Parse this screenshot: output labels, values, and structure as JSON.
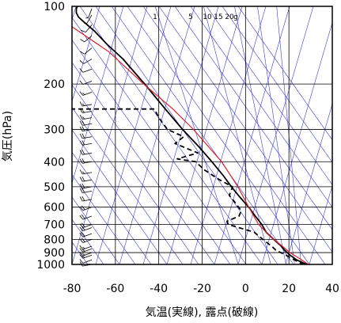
{
  "chart_data": {
    "type": "line",
    "title": "",
    "xlabel": "気温(実線), 露点(破線)",
    "ylabel": "気圧(hPa)",
    "xlim": [
      -80,
      40
    ],
    "ylim": [
      1000,
      100
    ],
    "y_scale": "log",
    "x_ticks": [
      "-80",
      "-60",
      "-40",
      "-20",
      "0",
      "20",
      "40"
    ],
    "y_ticks": [
      "100",
      "200",
      "300",
      "400",
      "500",
      "600",
      "700",
      "800",
      "900",
      "1000"
    ],
    "mixing_ratio_labels": [
      "1",
      "5",
      "10",
      "15",
      "20",
      "g"
    ],
    "colors": {
      "temperature": "#000000",
      "dewpoint": "#000000",
      "parcel": "#e0202a",
      "guides": "#3b3bd6",
      "grid": "#000000"
    },
    "series": [
      {
        "name": "気温",
        "style": "solid",
        "points": [
          [
            29.0,
            1000
          ],
          [
            27.0,
            990
          ],
          [
            23.5,
            960
          ],
          [
            20.5,
            920
          ],
          [
            18.0,
            880
          ],
          [
            16.5,
            850
          ],
          [
            13.0,
            800
          ],
          [
            9.5,
            750
          ],
          [
            7.5,
            700
          ],
          [
            4.5,
            650
          ],
          [
            1.5,
            600
          ],
          [
            -2.5,
            550
          ],
          [
            -6.5,
            500
          ],
          [
            -10.5,
            450
          ],
          [
            -15.5,
            400
          ],
          [
            -21.5,
            350
          ],
          [
            -29.0,
            300
          ],
          [
            -37.0,
            250
          ],
          [
            -46.5,
            200
          ],
          [
            -56.5,
            160
          ],
          [
            -64.0,
            140
          ],
          [
            -69.5,
            125
          ],
          [
            -74.5,
            115
          ],
          [
            -77.0,
            110
          ],
          [
            -78.0,
            106
          ],
          [
            -78.0,
            102
          ],
          [
            -77.5,
            100
          ]
        ]
      },
      {
        "name": "露点",
        "style": "dashed",
        "points": [
          [
            27.0,
            1000
          ],
          [
            25.5,
            990
          ],
          [
            22.5,
            960
          ],
          [
            18.5,
            920
          ],
          [
            14.0,
            880
          ],
          [
            12.0,
            850
          ],
          [
            8.0,
            800
          ],
          [
            4.0,
            750
          ],
          [
            -8.0,
            700
          ],
          [
            -8.5,
            680
          ],
          [
            -3.0,
            650
          ],
          [
            -2.0,
            620
          ],
          [
            -4.5,
            580
          ],
          [
            -7.5,
            540
          ],
          [
            -6.0,
            500
          ],
          [
            -12.0,
            470
          ],
          [
            -19.0,
            430
          ],
          [
            -23.0,
            400
          ],
          [
            -31.5,
            390
          ],
          [
            -22.0,
            370
          ],
          [
            -32.5,
            340
          ],
          [
            -28.5,
            320
          ],
          [
            -36.0,
            300
          ],
          [
            -40.0,
            270
          ],
          [
            -42.0,
            250
          ],
          [
            -80.0,
            250
          ]
        ]
      },
      {
        "name": "",
        "style": "solid-red",
        "points": [
          [
            29.0,
            1000
          ],
          [
            25.0,
            950
          ],
          [
            20.5,
            900
          ],
          [
            17.0,
            850
          ],
          [
            13.0,
            800
          ],
          [
            9.5,
            750
          ],
          [
            6.0,
            700
          ],
          [
            1.5,
            600
          ],
          [
            -3.5,
            500
          ],
          [
            -11.0,
            400
          ],
          [
            -24.0,
            300
          ],
          [
            -33.5,
            250
          ],
          [
            -47.0,
            200
          ],
          [
            -63.0,
            150
          ],
          [
            -80.0,
            120
          ]
        ]
      }
    ],
    "wind_barbs": [
      {
        "p": 1000,
        "dir": 260,
        "kt": 10
      },
      {
        "p": 960,
        "dir": 250,
        "kt": 10
      },
      {
        "p": 920,
        "dir": 250,
        "kt": 15
      },
      {
        "p": 900,
        "dir": 250,
        "kt": 15
      },
      {
        "p": 870,
        "dir": 250,
        "kt": 15
      },
      {
        "p": 850,
        "dir": 250,
        "kt": 15
      },
      {
        "p": 800,
        "dir": 250,
        "kt": 20
      },
      {
        "p": 760,
        "dir": 250,
        "kt": 20
      },
      {
        "p": 720,
        "dir": 250,
        "kt": 20
      },
      {
        "p": 700,
        "dir": 250,
        "kt": 20
      },
      {
        "p": 650,
        "dir": 250,
        "kt": 20
      },
      {
        "p": 600,
        "dir": 250,
        "kt": 20
      },
      {
        "p": 560,
        "dir": 260,
        "kt": 20
      },
      {
        "p": 520,
        "dir": 260,
        "kt": 20
      },
      {
        "p": 500,
        "dir": 260,
        "kt": 20
      },
      {
        "p": 470,
        "dir": 260,
        "kt": 20
      },
      {
        "p": 440,
        "dir": 260,
        "kt": 15
      },
      {
        "p": 400,
        "dir": 260,
        "kt": 20
      },
      {
        "p": 370,
        "dir": 260,
        "kt": 20
      },
      {
        "p": 340,
        "dir": 260,
        "kt": 20
      },
      {
        "p": 320,
        "dir": 260,
        "kt": 20
      },
      {
        "p": 300,
        "dir": 260,
        "kt": 20
      },
      {
        "p": 285,
        "dir": 260,
        "kt": 20
      },
      {
        "p": 270,
        "dir": 260,
        "kt": 15
      },
      {
        "p": 255,
        "dir": 260,
        "kt": 15
      },
      {
        "p": 240,
        "dir": 260,
        "kt": 15
      },
      {
        "p": 215,
        "dir": 250,
        "kt": 15
      },
      {
        "p": 195,
        "dir": 250,
        "kt": 10
      },
      {
        "p": 175,
        "dir": 250,
        "kt": 10
      },
      {
        "p": 160,
        "dir": 240,
        "kt": 10
      },
      {
        "p": 145,
        "dir": 230,
        "kt": 10
      },
      {
        "p": 130,
        "dir": 230,
        "kt": 10
      },
      {
        "p": 118,
        "dir": 220,
        "kt": 10
      },
      {
        "p": 108,
        "dir": 210,
        "kt": 5
      },
      {
        "p": 102,
        "dir": 200,
        "kt": 5
      }
    ],
    "grid": true,
    "legend": "none"
  }
}
